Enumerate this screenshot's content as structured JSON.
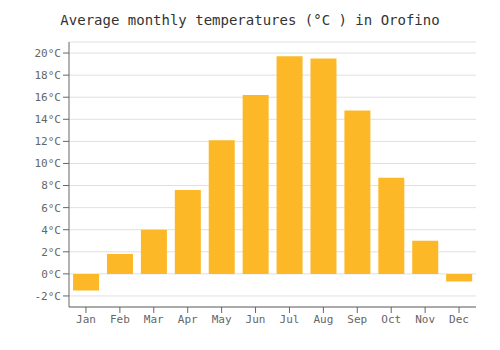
{
  "chart_data": {
    "type": "bar",
    "title": "Average monthly temperatures (°C ) in Orofino",
    "categories": [
      "Jan",
      "Feb",
      "Mar",
      "Apr",
      "May",
      "Jun",
      "Jul",
      "Aug",
      "Sep",
      "Oct",
      "Nov",
      "Dec"
    ],
    "values": [
      -1.5,
      1.8,
      4.0,
      7.6,
      12.1,
      16.2,
      19.7,
      19.5,
      14.8,
      8.7,
      3.0,
      -0.7
    ],
    "color": "#FDB827",
    "ylim": [
      -3,
      21
    ],
    "yticks": [
      {
        "value": -2,
        "label": "-2°C"
      },
      {
        "value": 0,
        "label": "0°C"
      },
      {
        "value": 2,
        "label": "2°C"
      },
      {
        "value": 4,
        "label": "4°C"
      },
      {
        "value": 6,
        "label": "6°C"
      },
      {
        "value": 8,
        "label": "8°C"
      },
      {
        "value": 10,
        "label": "10°C"
      },
      {
        "value": 12,
        "label": "12°C"
      },
      {
        "value": 14,
        "label": "14°C"
      },
      {
        "value": 16,
        "label": "16°C"
      },
      {
        "value": 18,
        "label": "18°C"
      },
      {
        "value": 20,
        "label": "20°C"
      }
    ],
    "grid": true
  }
}
